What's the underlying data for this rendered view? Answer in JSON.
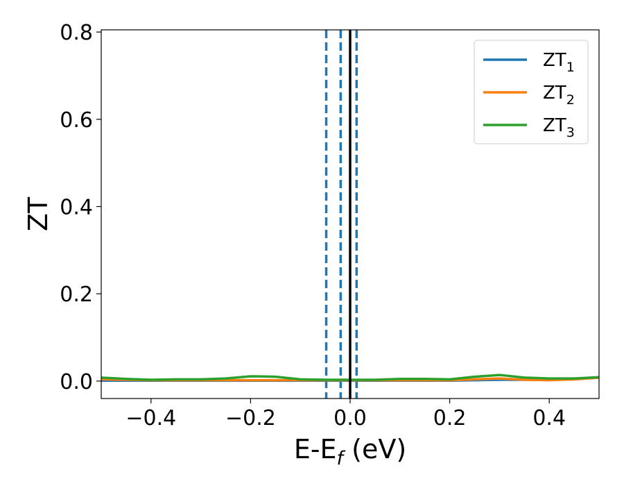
{
  "chart_data": {
    "type": "line",
    "xlabel": {
      "main": "E-E",
      "sub": "f",
      "tail": " (eV)"
    },
    "ylabel": "ZT",
    "xlim": [
      -0.5,
      0.5
    ],
    "ylim": [
      -0.04,
      0.805
    ],
    "xticks": [
      -0.4,
      -0.2,
      0.0,
      0.2,
      0.4
    ],
    "xtick_labels": [
      "−0.4",
      "−0.2",
      "0.0",
      "0.2",
      "0.4"
    ],
    "yticks": [
      0.0,
      0.2,
      0.4,
      0.6,
      0.8
    ],
    "ytick_labels": [
      "0.0",
      "0.2",
      "0.4",
      "0.6",
      "0.8"
    ],
    "grid": false,
    "legend_position": "top-right",
    "vertical_lines": [
      {
        "x": -0.048,
        "style": "dashed",
        "color": "#1f77b4"
      },
      {
        "x": -0.019,
        "style": "dashed",
        "color": "#1f77b4"
      },
      {
        "x": 0.013,
        "style": "dashed",
        "color": "#1f77b4"
      },
      {
        "x": 0.0,
        "style": "solid",
        "color": "#000000"
      }
    ],
    "series": [
      {
        "name": "ZT",
        "name_sub": "1",
        "color": "#1f77b4",
        "x": [
          -0.5,
          -0.45,
          -0.4,
          -0.35,
          -0.3,
          -0.25,
          -0.2,
          -0.15,
          -0.1,
          -0.05,
          0.0,
          0.05,
          0.1,
          0.15,
          0.2,
          0.25,
          0.3,
          0.35,
          0.4,
          0.45,
          0.5
        ],
        "y": [
          0.001,
          0.001,
          0.001,
          0.001,
          0.001,
          0.001,
          0.001,
          0.001,
          0.001,
          0.001,
          0.001,
          0.001,
          0.001,
          0.001,
          0.001,
          0.002,
          0.003,
          0.003,
          0.003,
          0.004,
          0.008
        ]
      },
      {
        "name": "ZT",
        "name_sub": "2",
        "color": "#ff7f0e",
        "x": [
          -0.5,
          -0.45,
          -0.4,
          -0.35,
          -0.3,
          -0.25,
          -0.2,
          -0.15,
          -0.1,
          -0.05,
          0.0,
          0.05,
          0.1,
          0.15,
          0.2,
          0.25,
          0.3,
          0.35,
          0.4,
          0.45,
          0.5
        ],
        "y": [
          0.004,
          0.003,
          0.002,
          0.002,
          0.002,
          0.002,
          0.002,
          0.002,
          0.002,
          0.002,
          0.002,
          0.002,
          0.002,
          0.002,
          0.002,
          0.004,
          0.006,
          0.003,
          0.002,
          0.004,
          0.008
        ]
      },
      {
        "name": "ZT",
        "name_sub": "3",
        "color": "#2ca02c",
        "x": [
          -0.5,
          -0.45,
          -0.4,
          -0.35,
          -0.3,
          -0.25,
          -0.2,
          -0.15,
          -0.1,
          -0.05,
          0.0,
          0.05,
          0.1,
          0.15,
          0.2,
          0.25,
          0.3,
          0.35,
          0.4,
          0.45,
          0.5
        ],
        "y": [
          0.008,
          0.005,
          0.003,
          0.004,
          0.004,
          0.006,
          0.011,
          0.01,
          0.004,
          0.003,
          0.003,
          0.003,
          0.005,
          0.005,
          0.004,
          0.01,
          0.014,
          0.008,
          0.006,
          0.006,
          0.009
        ]
      }
    ]
  }
}
